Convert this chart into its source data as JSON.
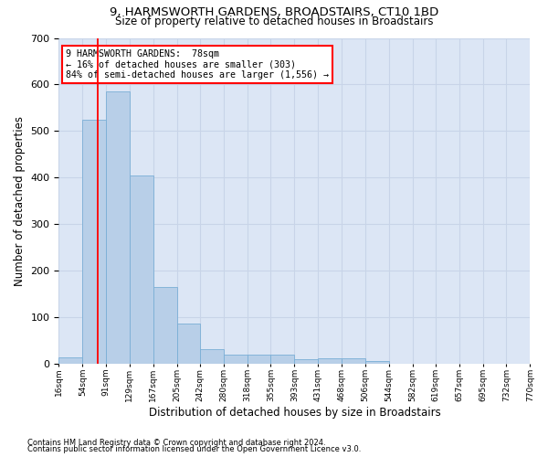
{
  "title": "9, HARMSWORTH GARDENS, BROADSTAIRS, CT10 1BD",
  "subtitle": "Size of property relative to detached houses in Broadstairs",
  "xlabel": "Distribution of detached houses by size in Broadstairs",
  "ylabel": "Number of detached properties",
  "bar_edges": [
    16,
    54,
    91,
    129,
    167,
    205,
    242,
    280,
    318,
    355,
    393,
    431,
    468,
    506,
    544,
    582,
    619,
    657,
    695,
    732,
    770
  ],
  "bar_heights": [
    15,
    525,
    585,
    405,
    165,
    88,
    32,
    20,
    20,
    20,
    10,
    12,
    12,
    6,
    0,
    0,
    0,
    0,
    0,
    0
  ],
  "bar_color": "#b8cfe8",
  "bar_edge_color": "#7aaed6",
  "grid_color": "#c8d4e8",
  "bg_color": "#dce6f5",
  "red_line_x": 78,
  "annotation_line1": "9 HARMSWORTH GARDENS:  78sqm",
  "annotation_line2": "← 16% of detached houses are smaller (303)",
  "annotation_line3": "84% of semi-detached houses are larger (1,556) →",
  "ylim": [
    0,
    700
  ],
  "yticks": [
    0,
    100,
    200,
    300,
    400,
    500,
    600,
    700
  ],
  "footnote1": "Contains HM Land Registry data © Crown copyright and database right 2024.",
  "footnote2": "Contains public sector information licensed under the Open Government Licence v3.0."
}
